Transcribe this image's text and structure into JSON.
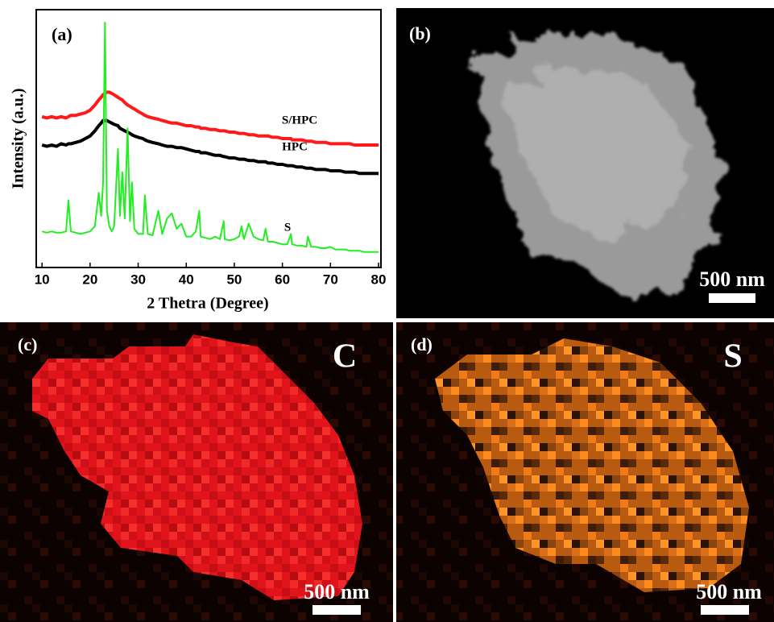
{
  "chart_data": {
    "type": "line",
    "panel_label": "(a)",
    "x_label": "2 Thetra (Degree)",
    "y_label": "Intensity (a.u.)",
    "xlim": [
      8.8,
      80.5
    ],
    "xticks": [
      10,
      20,
      30,
      40,
      50,
      60,
      70,
      80
    ],
    "ylim": [
      0,
      100
    ],
    "x": [
      10,
      11,
      12,
      13,
      14,
      15,
      15.5,
      16,
      17,
      18,
      19,
      20,
      21,
      21.8,
      22.3,
      22.7,
      23.1,
      23.5,
      24,
      24.5,
      25,
      25.8,
      26.2,
      26.7,
      27.2,
      27.8,
      28.3,
      28.7,
      29.2,
      30,
      31,
      31.4,
      32,
      33,
      34.2,
      35,
      36,
      37,
      38,
      39,
      40,
      41,
      42,
      42.7,
      43,
      44,
      45,
      46,
      47,
      47.8,
      48,
      49,
      50,
      51,
      51.5,
      52,
      53,
      54,
      55,
      56,
      56.5,
      57,
      58,
      59,
      60,
      61,
      61.8,
      62,
      63,
      64,
      65,
      65.3,
      66,
      67,
      68,
      69,
      70,
      71,
      72,
      73,
      74,
      75,
      76,
      77,
      78,
      79,
      80
    ],
    "series": [
      {
        "name": "S/HPC",
        "color": "#ff1a1a",
        "values": [
          58.5,
          58,
          58.5,
          58,
          58.5,
          58,
          58.5,
          59,
          59,
          59.5,
          60,
          61,
          63,
          65,
          66,
          67,
          67.5,
          68,
          68,
          67.5,
          67,
          66,
          65.5,
          65,
          64,
          63,
          62.5,
          62,
          61.5,
          60.5,
          59.5,
          59,
          58.5,
          58,
          57.5,
          57,
          56.5,
          56,
          56,
          55.5,
          55,
          55,
          54.5,
          54.5,
          54,
          54,
          53.5,
          53.5,
          53,
          53,
          53,
          52.5,
          52.5,
          52,
          52,
          52,
          51.5,
          51.5,
          51,
          51,
          51,
          51,
          50.5,
          50.5,
          50,
          50,
          50,
          49.5,
          49.5,
          49.5,
          49,
          49,
          49,
          48.5,
          48.5,
          48.5,
          48,
          48,
          48,
          48,
          48,
          47.5,
          47.5,
          47.5,
          47.5,
          47.5,
          47.5
        ]
      },
      {
        "name": "HPC",
        "color": "#000000",
        "values": [
          47.5,
          47,
          47.5,
          47,
          48,
          47.5,
          48,
          48,
          48.5,
          49,
          50,
          51,
          53,
          55,
          56,
          57,
          57,
          57,
          56.5,
          56,
          55.5,
          55,
          54,
          53.5,
          53,
          52.5,
          52,
          51.5,
          51,
          50.5,
          50,
          49.5,
          49,
          48.5,
          48,
          47.5,
          47,
          47,
          46.5,
          46.5,
          46,
          45.5,
          45,
          45,
          44.5,
          44.5,
          44,
          43.5,
          43.5,
          43,
          43,
          42.5,
          42.5,
          42,
          42,
          42,
          41.5,
          41.5,
          41,
          41,
          41,
          40.5,
          40.5,
          40,
          40,
          39.5,
          39.5,
          39.5,
          39,
          39,
          38.5,
          38.5,
          38.5,
          38,
          38,
          38,
          37.5,
          37.5,
          37.5,
          37,
          37,
          37,
          36.5,
          36.5,
          36.5,
          36.5,
          36.5
        ]
      },
      {
        "name": "S",
        "color": "#22ee22",
        "values": [
          14,
          13.5,
          14,
          13.5,
          13.5,
          14,
          26,
          14,
          13.5,
          13,
          13.5,
          14,
          16,
          29,
          20,
          33,
          95,
          22,
          16,
          14,
          16,
          46,
          20,
          37,
          19,
          54,
          18,
          33,
          15,
          13,
          13,
          28,
          13,
          12.5,
          22,
          13,
          19,
          21,
          15,
          17,
          12,
          12,
          14,
          22,
          12,
          11.5,
          11,
          12,
          11,
          18,
          11,
          10.5,
          11,
          12,
          16,
          11,
          17,
          12,
          11,
          10.5,
          15,
          10,
          10,
          9.5,
          9,
          9,
          13,
          9,
          8.5,
          8.5,
          8,
          12,
          8,
          8,
          7.5,
          7.5,
          8,
          7,
          7,
          7,
          6.5,
          6.5,
          6.5,
          6,
          6,
          6,
          6
        ]
      }
    ]
  },
  "panels": [
    {
      "label": "(b)",
      "scale_bar": "500 nm"
    },
    {
      "label": "(c)",
      "element": "C",
      "scale_bar": "500 nm"
    },
    {
      "label": "(d)",
      "element": "S",
      "scale_bar": "500 nm"
    }
  ]
}
